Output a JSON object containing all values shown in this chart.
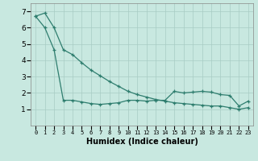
{
  "title": "",
  "xlabel": "Humidex (Indice chaleur)",
  "x": [
    0,
    1,
    2,
    3,
    4,
    5,
    6,
    7,
    8,
    9,
    10,
    11,
    12,
    13,
    14,
    15,
    16,
    17,
    18,
    19,
    20,
    21,
    22,
    23
  ],
  "line1": [
    6.7,
    6.9,
    6.0,
    4.65,
    4.35,
    3.85,
    3.4,
    3.05,
    2.7,
    2.4,
    2.1,
    1.9,
    1.75,
    1.6,
    1.5,
    1.4,
    1.35,
    1.3,
    1.25,
    1.2,
    1.2,
    1.1,
    1.0,
    1.1
  ],
  "line2": [
    6.7,
    6.0,
    4.65,
    1.55,
    1.55,
    1.45,
    1.35,
    1.3,
    1.35,
    1.4,
    1.55,
    1.55,
    1.5,
    1.55,
    1.55,
    2.1,
    2.0,
    2.05,
    2.1,
    2.05,
    1.9,
    1.85,
    1.2,
    1.5
  ],
  "line_color": "#2e7d6e",
  "bg_color": "#c8e8e0",
  "grid_color": "#a8ccc4",
  "ylim": [
    0,
    7.5
  ],
  "xlim": [
    -0.5,
    23.5
  ]
}
